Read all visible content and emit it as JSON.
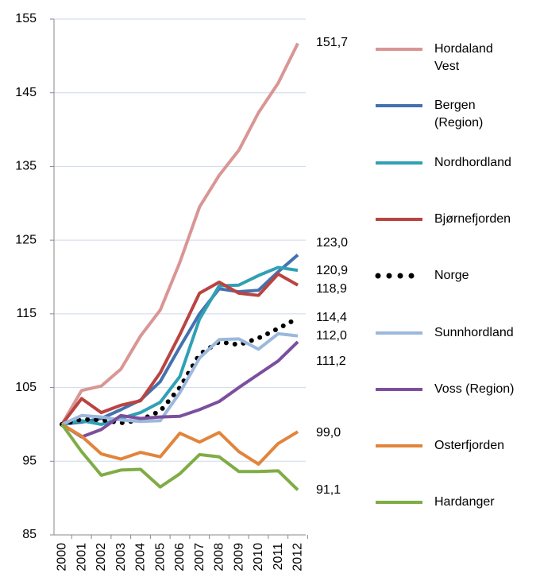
{
  "chart_data": {
    "type": "line",
    "categories": [
      "2000",
      "2001",
      "2002",
      "2003",
      "2004",
      "2005",
      "2006",
      "2007",
      "2008",
      "2009",
      "2010",
      "2011",
      "2012"
    ],
    "ylim": [
      85,
      155
    ],
    "yticks": [
      85,
      95,
      105,
      115,
      125,
      135,
      145,
      155
    ],
    "grid": true,
    "legend": "right",
    "series": [
      {
        "name": "Hordaland Vest",
        "color": "#d99694",
        "values": [
          100,
          104.6,
          105.2,
          107.5,
          112,
          115.5,
          122,
          129.5,
          133.8,
          137.2,
          142.3,
          146.3,
          151.7
        ],
        "value_labels": [
          null,
          null,
          null,
          null,
          null,
          null,
          null,
          null,
          null,
          null,
          null,
          null,
          "151,7"
        ]
      },
      {
        "name": "Bergen (Region)",
        "color": "#4471b0",
        "values": [
          100,
          100.3,
          100.8,
          102,
          103.3,
          105.8,
          110.5,
          115,
          118.4,
          118,
          118.2,
          120.7,
          123.0
        ],
        "value_labels": [
          null,
          null,
          null,
          null,
          null,
          null,
          null,
          null,
          null,
          null,
          null,
          null,
          "123,0"
        ]
      },
      {
        "name": "Nordhordland",
        "color": "#31a0b4",
        "values": [
          100,
          100.5,
          100,
          100.8,
          101.6,
          103,
          106.5,
          114.3,
          118.8,
          118.9,
          120.2,
          121.3,
          120.9
        ],
        "value_labels": [
          null,
          null,
          null,
          null,
          null,
          null,
          null,
          null,
          null,
          null,
          null,
          null,
          "120,9"
        ]
      },
      {
        "name": "Bjørnefjorden",
        "color": "#b94441",
        "values": [
          100,
          103.5,
          101.6,
          102.6,
          103.2,
          107,
          112.2,
          117.8,
          119.3,
          117.8,
          117.5,
          120.4,
          118.9
        ],
        "value_labels": [
          null,
          null,
          null,
          null,
          null,
          null,
          null,
          null,
          null,
          null,
          null,
          null,
          "118,9"
        ]
      },
      {
        "name": "Norge",
        "color": "#000000",
        "dotted": true,
        "values": [
          100,
          100.7,
          100.6,
          100.2,
          100.6,
          101.8,
          105,
          109.5,
          111.2,
          110.8,
          111.7,
          113,
          114.4
        ],
        "value_labels": [
          null,
          null,
          null,
          null,
          null,
          null,
          null,
          null,
          null,
          null,
          null,
          null,
          "114,4"
        ]
      },
      {
        "name": "Sunnhordland",
        "color": "#9cb8dc",
        "values": [
          100,
          101.2,
          101,
          100.6,
          100.4,
          100.5,
          104.3,
          109,
          111.5,
          111.6,
          110.2,
          112.3,
          112.0
        ],
        "value_labels": [
          null,
          null,
          null,
          null,
          null,
          null,
          null,
          null,
          null,
          null,
          null,
          null,
          "112,0"
        ]
      },
      {
        "name": "Voss (Region)",
        "color": "#7b4f9d",
        "values": [
          100,
          98.3,
          99.3,
          101.2,
          100.8,
          101,
          101.1,
          102,
          103.1,
          105,
          106.8,
          108.6,
          111.2
        ],
        "value_labels": [
          null,
          null,
          null,
          null,
          null,
          null,
          null,
          null,
          null,
          null,
          null,
          null,
          "111,2"
        ]
      },
      {
        "name": "Osterfjorden",
        "color": "#e2843b",
        "values": [
          100,
          98.4,
          96,
          95.3,
          96.2,
          95.6,
          98.8,
          97.6,
          98.9,
          96.3,
          94.6,
          97.4,
          99.0
        ],
        "value_labels": [
          null,
          null,
          null,
          null,
          null,
          null,
          null,
          null,
          null,
          null,
          null,
          null,
          "99,0"
        ]
      },
      {
        "name": "Hardanger",
        "color": "#80ac45",
        "values": [
          100,
          96.3,
          93.1,
          93.8,
          93.9,
          91.5,
          93.3,
          95.9,
          95.6,
          93.6,
          93.6,
          93.7,
          91.1
        ],
        "value_labels": [
          null,
          null,
          null,
          null,
          null,
          null,
          null,
          null,
          null,
          null,
          null,
          null,
          "91,1"
        ]
      }
    ]
  }
}
